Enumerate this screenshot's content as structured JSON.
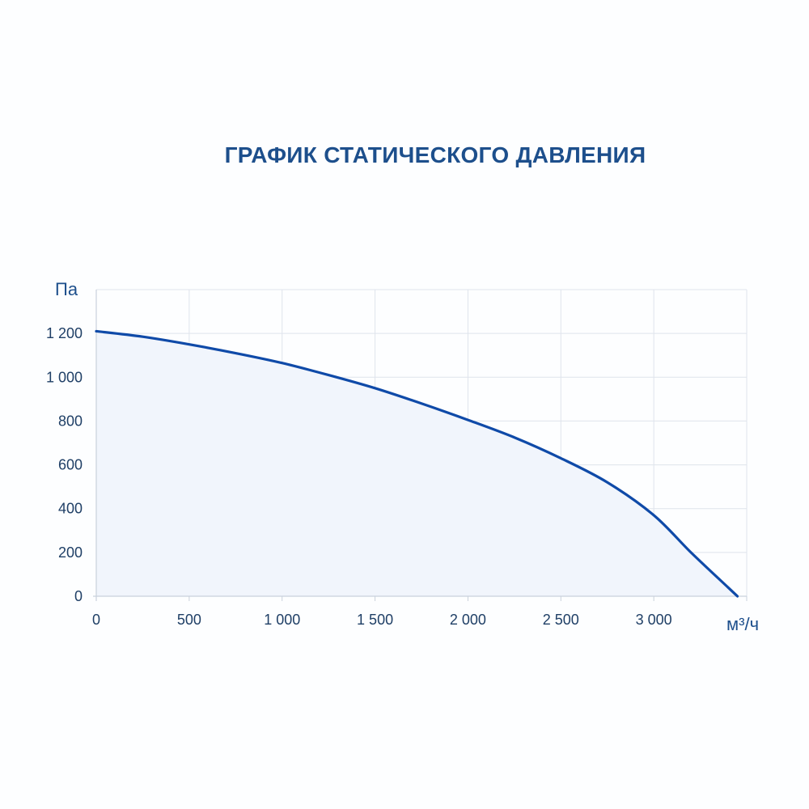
{
  "chart_data": {
    "type": "area",
    "title": "ГРАФИК СТАТИЧЕСКОГО ДАВЛЕНИЯ",
    "ylabel": "Па",
    "xlabel": "м³/ч",
    "xlim": [
      0,
      3500
    ],
    "ylim": [
      0,
      1400
    ],
    "x_ticks": [
      0,
      500,
      1000,
      1500,
      2000,
      2500,
      3000,
      3500
    ],
    "x_tick_labels": [
      "0",
      "500",
      "1 000",
      "1 500",
      "2 000",
      "2 500",
      "3 000"
    ],
    "y_ticks": [
      0,
      200,
      400,
      600,
      800,
      1000,
      1200,
      1400
    ],
    "y_tick_labels": [
      "0",
      "200",
      "400",
      "600",
      "800",
      "1 000",
      "1 200"
    ],
    "grid": true,
    "series": [
      {
        "x": [
          0,
          250,
          500,
          750,
          1000,
          1250,
          1500,
          1750,
          2000,
          2250,
          2500,
          2750,
          3000,
          3200,
          3400,
          3450
        ],
        "values": [
          1210,
          1185,
          1150,
          1110,
          1065,
          1010,
          950,
          880,
          805,
          725,
          630,
          520,
          370,
          200,
          40,
          0
        ]
      }
    ],
    "colors": {
      "line": "#0f4aa8",
      "fill": "#f1f5fc",
      "grid": "#dfe4ec",
      "title": "#1d4f8c"
    }
  }
}
